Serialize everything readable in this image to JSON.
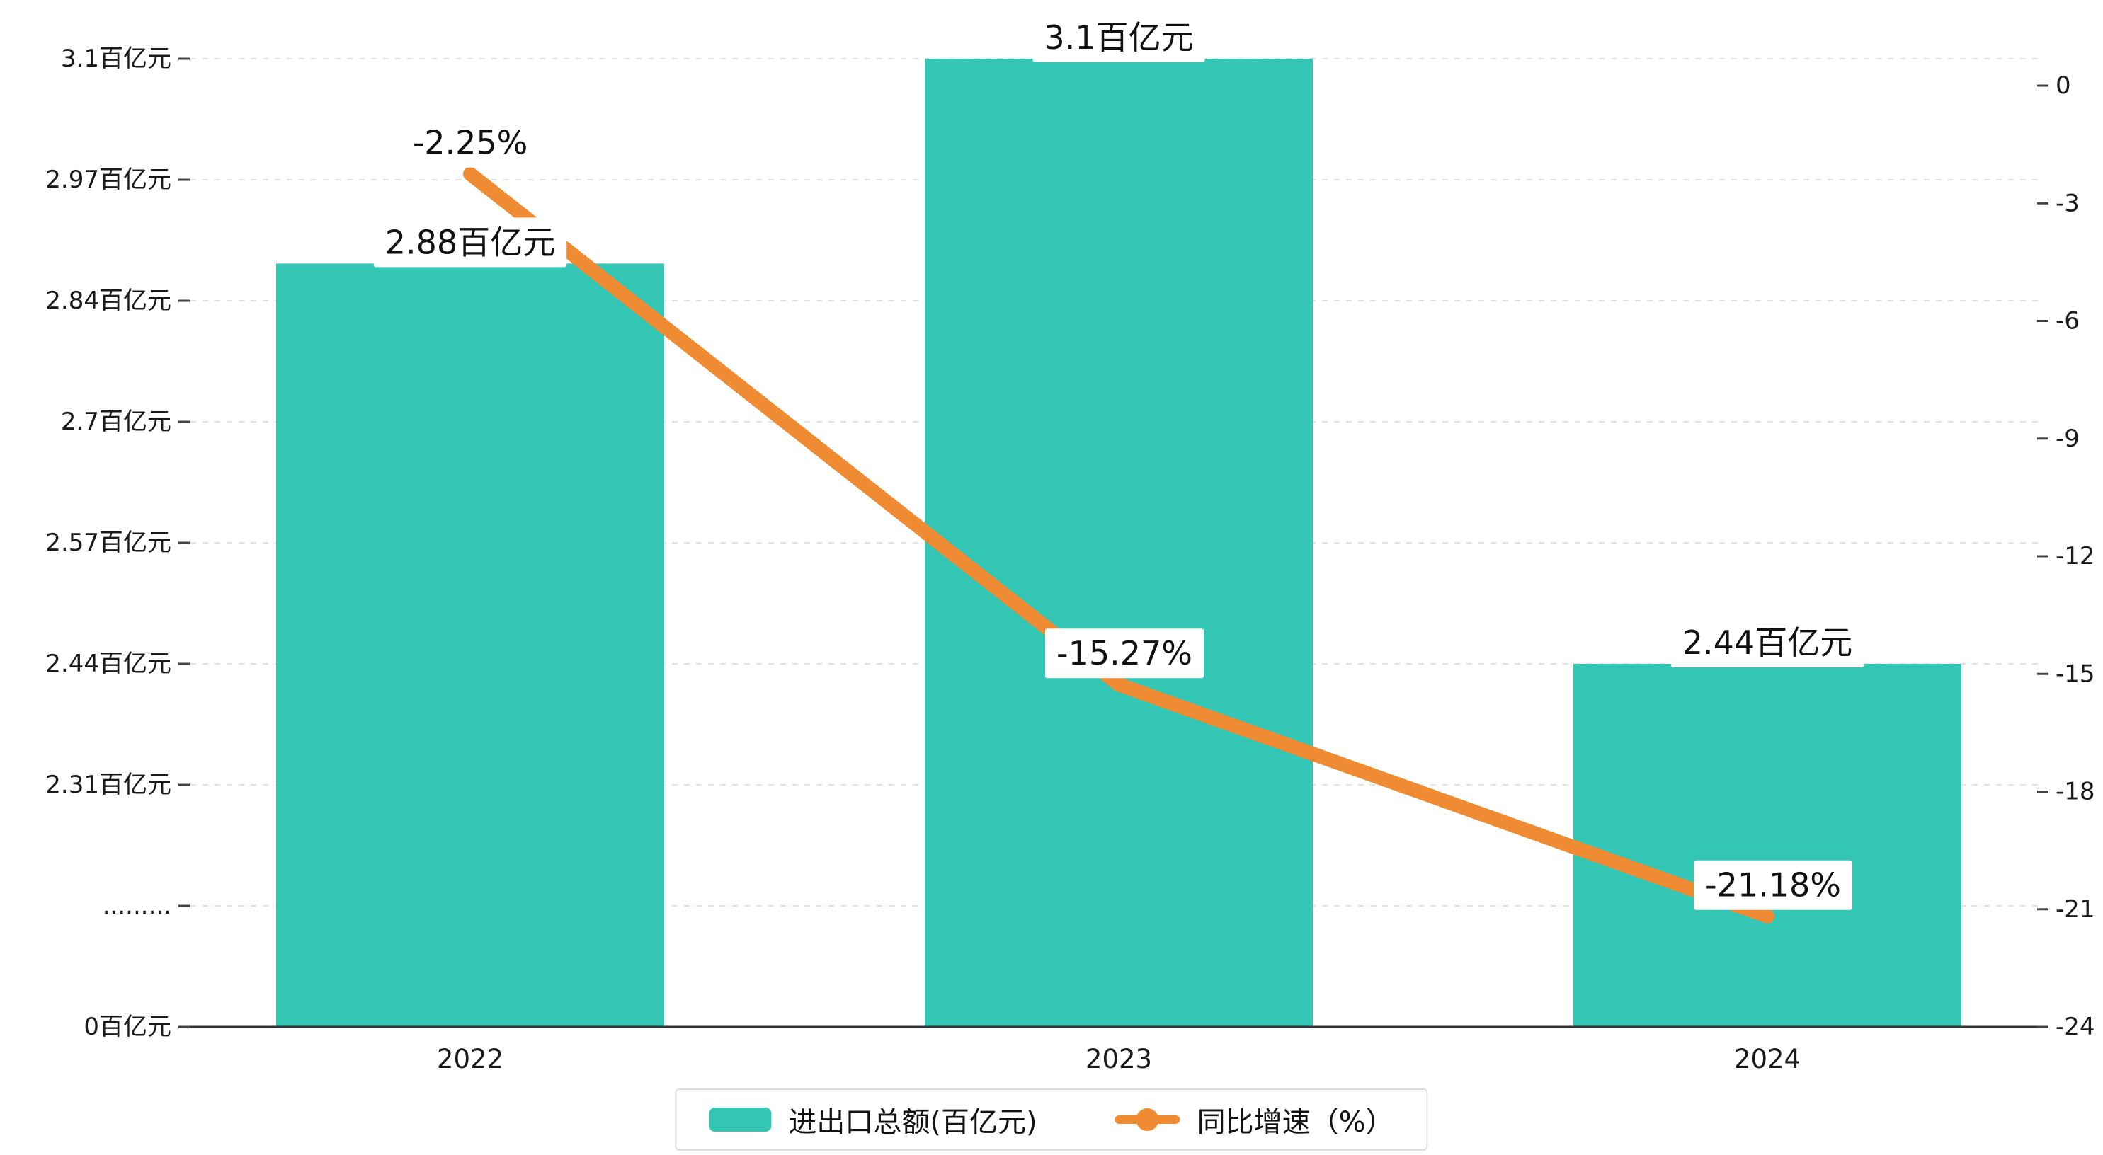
{
  "chart_data": {
    "type": "bar+line",
    "title": "",
    "categories": [
      "2022",
      "2023",
      "2024"
    ],
    "series": [
      {
        "name": "进出口总额(百亿元)",
        "type": "bar",
        "color": "#33c6b5",
        "values": [
          2.88,
          3.1,
          2.44
        ],
        "data_labels": [
          "2.88百亿元",
          "3.1百亿元",
          "2.44百亿元"
        ]
      },
      {
        "name": "同比增速（%）",
        "type": "line",
        "color": "#ef8b33",
        "values": [
          -2.25,
          -15.27,
          -21.18
        ],
        "data_labels": [
          "-2.25%",
          "-15.27%",
          "-21.18%"
        ]
      }
    ],
    "left_axis": {
      "unit": "百亿元",
      "tick_labels": [
        "3.1百亿元",
        "2.97百亿元",
        "2.84百亿元",
        "2.7百亿元",
        "2.57百亿元",
        "2.44百亿元",
        "2.31百亿元",
        ".........",
        "0百亿元"
      ],
      "tick_values": [
        3.1,
        2.97,
        2.84,
        2.7,
        2.57,
        2.44,
        2.31,
        null,
        0
      ],
      "axis_break": true
    },
    "right_axis": {
      "tick_labels": [
        "0",
        "-3",
        "-6",
        "-9",
        "-12",
        "-15",
        "-18",
        "-21",
        "-24"
      ],
      "min": -24,
      "max": 0
    },
    "legend_position": "bottom",
    "grid": {
      "horizontal_dashed": true
    }
  }
}
